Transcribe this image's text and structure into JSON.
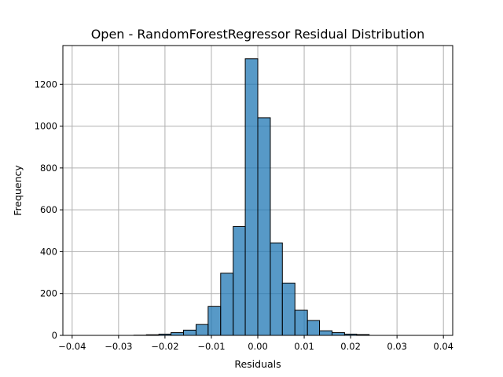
{
  "chart_data": {
    "type": "bar",
    "title": "Open - RandomForestRegressor Residual Distribution",
    "xlabel": "Residuals",
    "ylabel": "Frequency",
    "xlim": [
      -0.042,
      0.042
    ],
    "ylim": [
      0,
      1385
    ],
    "xticks": [
      -0.04,
      -0.03,
      -0.02,
      -0.01,
      0.0,
      0.01,
      0.02,
      0.03,
      0.04
    ],
    "xtick_labels": [
      "−0.04",
      "−0.03",
      "−0.02",
      "−0.01",
      "0.00",
      "0.01",
      "0.02",
      "0.03",
      "0.04"
    ],
    "yticks": [
      0,
      200,
      400,
      600,
      800,
      1000,
      1200
    ],
    "ytick_labels": [
      "0",
      "200",
      "400",
      "600",
      "800",
      "1000",
      "1200"
    ],
    "grid": true,
    "bar_color": "#1f77b4",
    "bins": [
      {
        "x0": -0.04,
        "x1": -0.0373,
        "count": 0
      },
      {
        "x0": -0.0373,
        "x1": -0.0347,
        "count": 0
      },
      {
        "x0": -0.0347,
        "x1": -0.032,
        "count": 0
      },
      {
        "x0": -0.032,
        "x1": -0.0293,
        "count": 0
      },
      {
        "x0": -0.0293,
        "x1": -0.0267,
        "count": 0
      },
      {
        "x0": -0.0267,
        "x1": -0.024,
        "count": 1
      },
      {
        "x0": -0.024,
        "x1": -0.0213,
        "count": 3
      },
      {
        "x0": -0.0213,
        "x1": -0.0187,
        "count": 6
      },
      {
        "x0": -0.0187,
        "x1": -0.016,
        "count": 13
      },
      {
        "x0": -0.016,
        "x1": -0.0133,
        "count": 25
      },
      {
        "x0": -0.0133,
        "x1": -0.0107,
        "count": 52
      },
      {
        "x0": -0.0107,
        "x1": -0.008,
        "count": 138
      },
      {
        "x0": -0.008,
        "x1": -0.0053,
        "count": 297
      },
      {
        "x0": -0.0053,
        "x1": -0.0027,
        "count": 520
      },
      {
        "x0": -0.0027,
        "x1": 0.0,
        "count": 1322
      },
      {
        "x0": 0.0,
        "x1": 0.0027,
        "count": 1040
      },
      {
        "x0": 0.0027,
        "x1": 0.0053,
        "count": 442
      },
      {
        "x0": 0.0053,
        "x1": 0.008,
        "count": 250
      },
      {
        "x0": 0.008,
        "x1": 0.0107,
        "count": 120
      },
      {
        "x0": 0.0107,
        "x1": 0.0133,
        "count": 71
      },
      {
        "x0": 0.0133,
        "x1": 0.016,
        "count": 22
      },
      {
        "x0": 0.016,
        "x1": 0.0187,
        "count": 13
      },
      {
        "x0": 0.0187,
        "x1": 0.0213,
        "count": 6
      },
      {
        "x0": 0.0213,
        "x1": 0.024,
        "count": 4
      }
    ]
  }
}
